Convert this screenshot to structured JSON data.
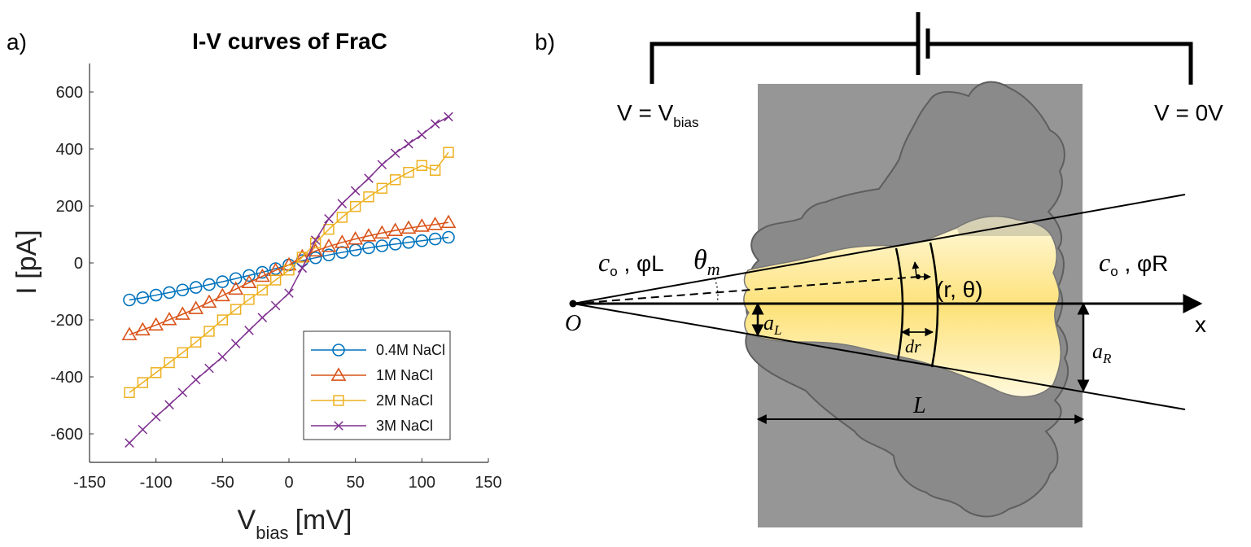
{
  "panels": {
    "a": "a)",
    "b": "b)"
  },
  "chart_data": {
    "type": "line",
    "title": "I-V curves of FraC",
    "xlabel_main": "V",
    "xlabel_sub": "bias",
    "xlabel_unit": "[mV]",
    "ylabel": "I [pA]",
    "xlim": [
      -150,
      150
    ],
    "ylim": [
      -700,
      700
    ],
    "xticks": [
      -150,
      -100,
      -50,
      0,
      50,
      100,
      150
    ],
    "yticks": [
      -600,
      -400,
      -200,
      0,
      200,
      400,
      600
    ],
    "grid": false,
    "legend_position": "bottom-right",
    "x": [
      -120,
      -110,
      -100,
      -90,
      -80,
      -70,
      -60,
      -50,
      -40,
      -30,
      -20,
      -10,
      0,
      10,
      20,
      30,
      40,
      50,
      60,
      70,
      80,
      90,
      100,
      110,
      120
    ],
    "series": [
      {
        "name": "0.4M NaCl",
        "color": "#0072BD",
        "marker": "circle",
        "values": [
          -130,
          -122,
          -113,
          -104,
          -95,
          -86,
          -76,
          -66,
          -55,
          -44,
          -33,
          -20,
          -7,
          8,
          18,
          28,
          37,
          45,
          53,
          60,
          66,
          72,
          78,
          84,
          90
        ]
      },
      {
        "name": "1M NaCl",
        "color": "#D95319",
        "marker": "triangle",
        "values": [
          -252,
          -235,
          -218,
          -199,
          -180,
          -160,
          -138,
          -115,
          -92,
          -69,
          -47,
          -26,
          -7,
          22,
          42,
          58,
          72,
          84,
          95,
          105,
          114,
          122,
          129,
          135,
          142
        ]
      },
      {
        "name": "2M NaCl",
        "color": "#EDB120",
        "marker": "square",
        "values": [
          -455,
          -420,
          -385,
          -350,
          -315,
          -278,
          -240,
          -200,
          -163,
          -128,
          -95,
          -60,
          -25,
          20,
          70,
          118,
          160,
          198,
          232,
          262,
          292,
          318,
          342,
          325,
          388
        ]
      },
      {
        "name": "3M NaCl",
        "color": "#7E2F8E",
        "marker": "x",
        "values": [
          -632,
          -585,
          -540,
          -498,
          -455,
          -410,
          -370,
          -330,
          -283,
          -237,
          -192,
          -150,
          -106,
          -18,
          80,
          155,
          208,
          253,
          297,
          345,
          385,
          418,
          450,
          488,
          513
        ]
      }
    ]
  },
  "diagram": {
    "v_left_main": "V = V",
    "v_left_sub": "bias",
    "v_right": "V = 0V",
    "left_conc": "c",
    "left_conc_sub": "o",
    "left_phi": "φ",
    "left_phi_sub": "L",
    "right_conc": "c",
    "right_conc_sub": "o",
    "right_phi": "φ",
    "right_phi_sub": "R",
    "theta": "θ",
    "theta_sub": "m",
    "point_label": "(r, θ)",
    "origin": "O",
    "x_axis": "x",
    "a_left": "a",
    "a_left_sub": "L",
    "a_right": "a",
    "a_right_sub": "R",
    "dr": "dr",
    "length": "L"
  }
}
